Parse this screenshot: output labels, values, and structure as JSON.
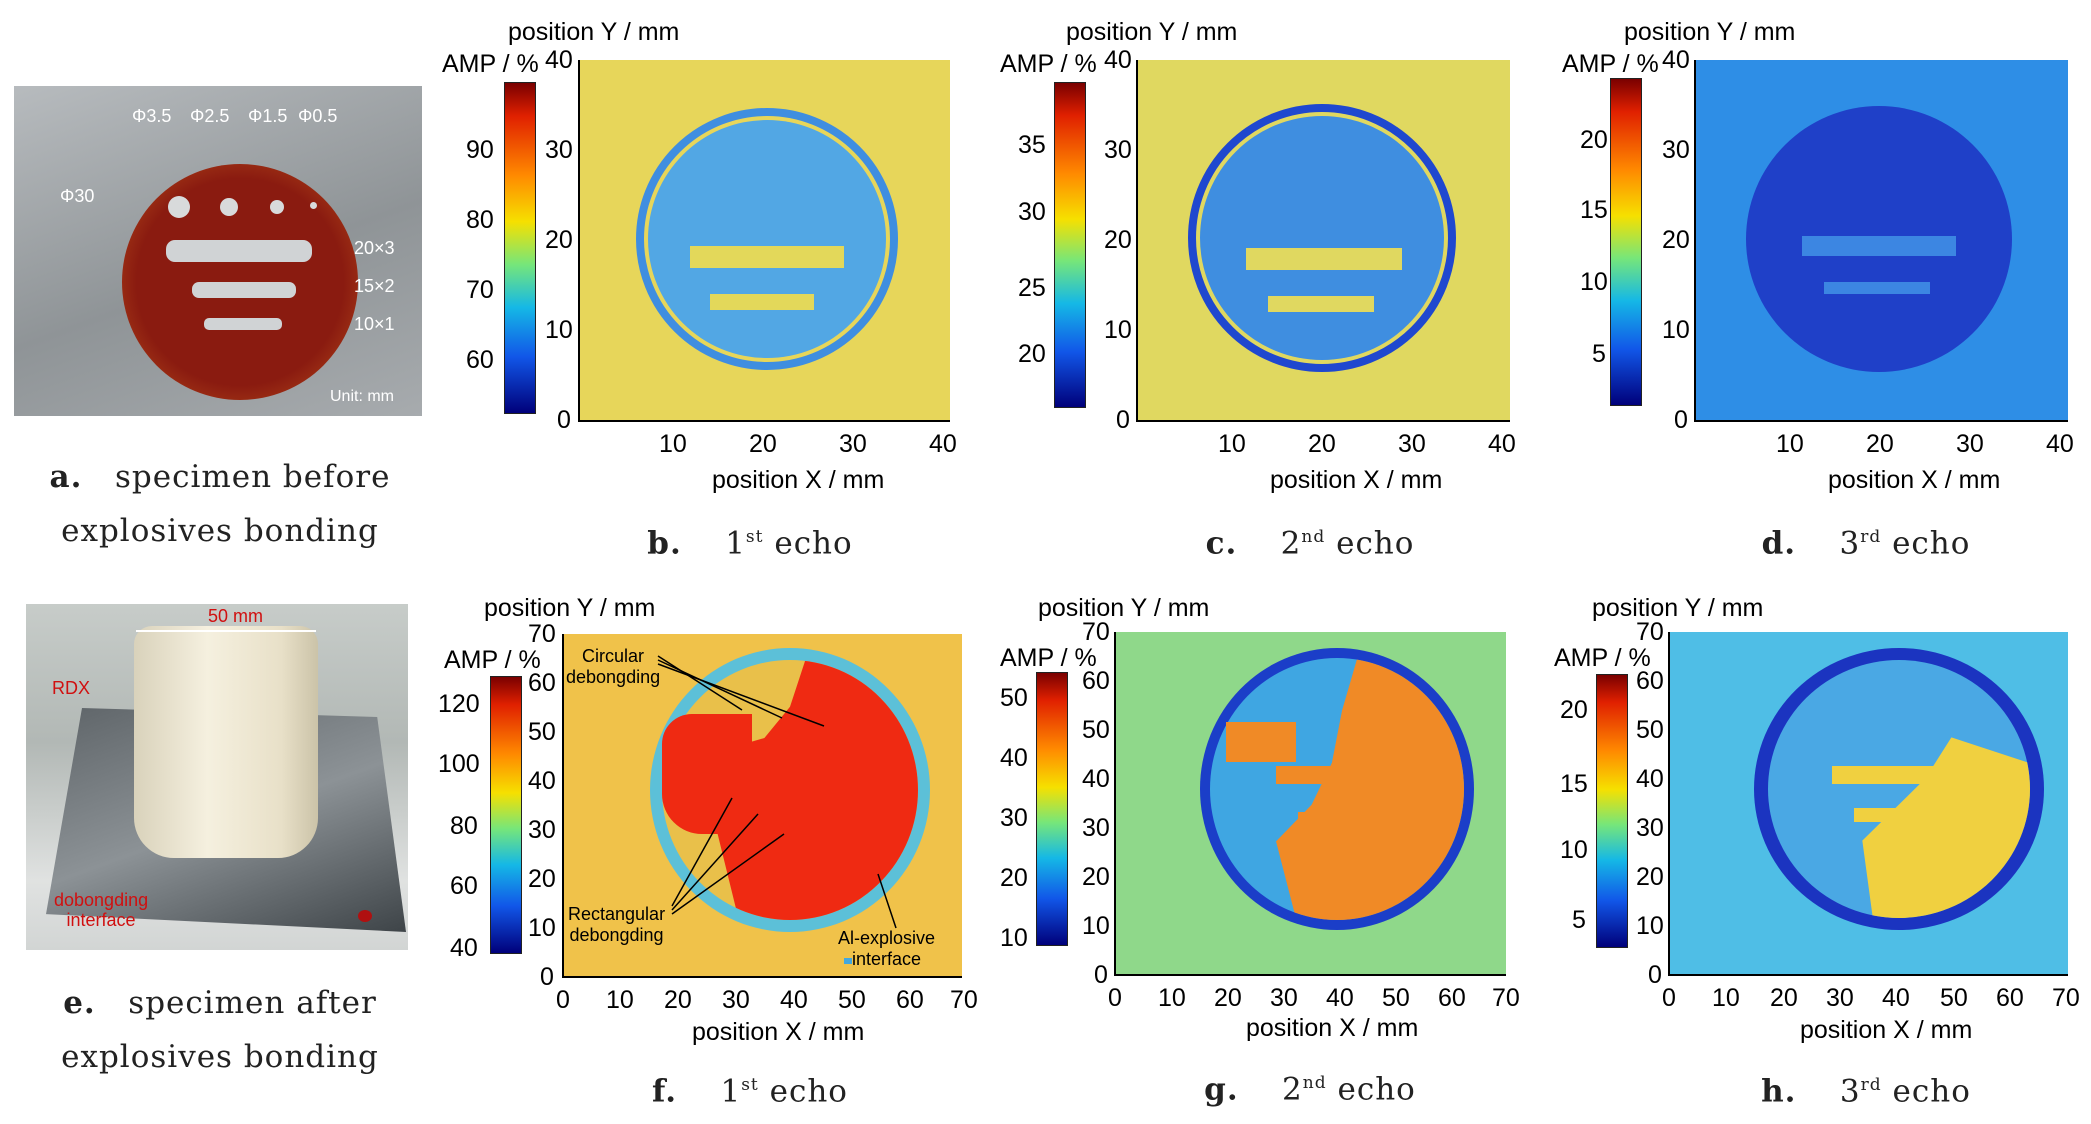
{
  "common": {
    "y_axis": "position Y / mm",
    "x_axis": "position X / mm",
    "amp": "AMP / %"
  },
  "panel_a": {
    "dims": {
      "d35": "Φ3.5",
      "d25": "Φ2.5",
      "d15": "Φ1.5",
      "d05": "Φ0.5",
      "d30": "Φ30",
      "r20": "20×3",
      "r15": "15×2",
      "r10": "10×1"
    },
    "unit": "Unit: mm",
    "caption_letter": "a.",
    "caption_l1": "specimen before",
    "caption_l2": "explosives bonding"
  },
  "panel_e": {
    "width_label": "50 mm",
    "rdx": "RDX",
    "interface_l1": "dobongding",
    "interface_l2": "interface",
    "caption_letter": "e.",
    "caption_l1": "specimen after",
    "caption_l2": "explosives bonding"
  },
  "row1": {
    "x_ticks": [
      "10",
      "20",
      "30",
      "40"
    ],
    "y_ticks": [
      "0",
      "10",
      "20",
      "30",
      "40"
    ],
    "b": {
      "letter": "b.",
      "num": "1",
      "sup": "st",
      "word": "echo",
      "cb": [
        "90",
        "80",
        "70",
        "60"
      ]
    },
    "c": {
      "letter": "c.",
      "num": "2",
      "sup": "nd",
      "word": "echo",
      "cb": [
        "35",
        "30",
        "25",
        "20"
      ]
    },
    "d": {
      "letter": "d.",
      "num": "3",
      "sup": "rd",
      "word": "echo",
      "cb": [
        "20",
        "15",
        "10",
        "5"
      ]
    }
  },
  "row2": {
    "x_ticks": [
      "0",
      "10",
      "20",
      "30",
      "40",
      "50",
      "60",
      "70"
    ],
    "y_ticks": [
      "0",
      "10",
      "20",
      "30",
      "40",
      "50",
      "60",
      "70"
    ],
    "f": {
      "letter": "f.",
      "num": "1",
      "sup": "st",
      "word": "echo",
      "cb": [
        "120",
        "100",
        "80",
        "60",
        "40"
      ],
      "ann_circ_l1": "Circular",
      "ann_circ_l2": "debongding",
      "ann_rect_l1": "Rectangular",
      "ann_rect_l2": "debongding",
      "ann_al_l1": "Al-explosive",
      "ann_al_l2": "interface"
    },
    "g": {
      "letter": "g.",
      "num": "2",
      "sup": "nd",
      "word": "echo",
      "cb": [
        "50",
        "40",
        "30",
        "20",
        "10"
      ]
    },
    "h": {
      "letter": "h.",
      "num": "3",
      "sup": "rd",
      "word": "echo",
      "cb": [
        "20",
        "15",
        "10",
        "5"
      ]
    }
  },
  "colors": {
    "photo_a_bg": "#9ea3a6",
    "bond_red": "#7c1a10",
    "map_yellow": "#e8d84a",
    "map_blue": "#3f8ee0",
    "map_deep": "#1f48cf",
    "f_red": "#ef2a12"
  }
}
